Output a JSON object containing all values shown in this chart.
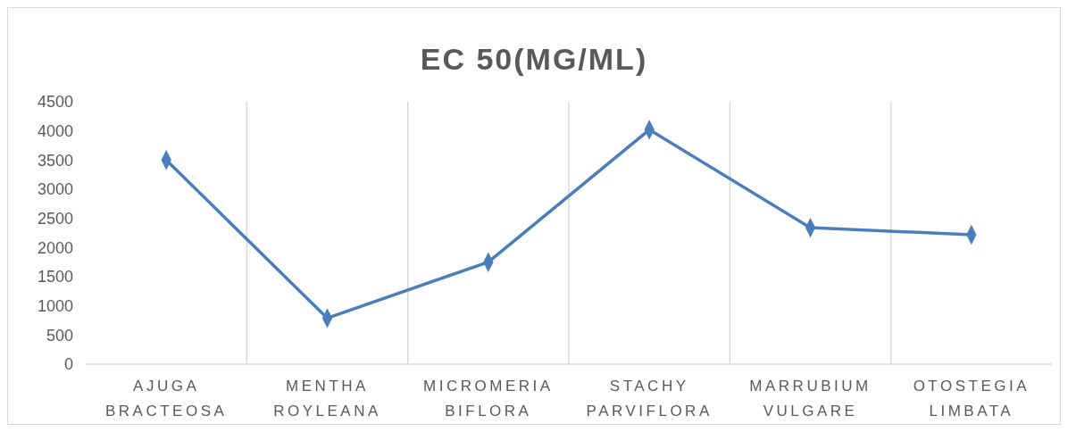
{
  "chart_data": {
    "type": "line",
    "title": "EC 50(MG/ML)",
    "categories": [
      "AJUGA BRACTEOSA",
      "MENTHA ROYLEANA",
      "MICROMERIA BIFLORA",
      "STACHY PARVIFLORA",
      "MARRUBIUM VULGARE",
      "OTOSTEGIA LIMBATA"
    ],
    "series": [
      {
        "color": "#4a7ebb",
        "values": [
          3500,
          790,
          1750,
          4020,
          2340,
          2220
        ]
      }
    ],
    "ylim": [
      0,
      4500
    ],
    "yticks": [
      0,
      500,
      1000,
      1500,
      2000,
      2500,
      3000,
      3500,
      4000,
      4500
    ],
    "grid": "x",
    "marker": "diamond",
    "line_style": "solid"
  }
}
